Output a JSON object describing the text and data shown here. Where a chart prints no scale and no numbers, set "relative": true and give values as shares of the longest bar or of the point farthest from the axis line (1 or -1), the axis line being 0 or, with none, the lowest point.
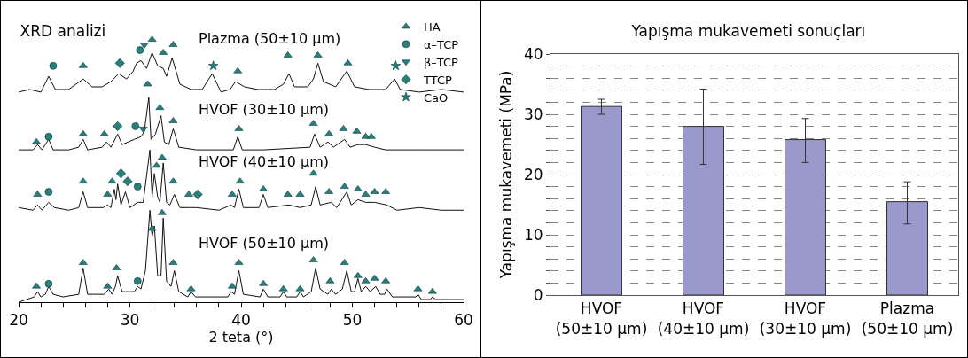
{
  "chart_data": [
    {
      "type": "line",
      "relative": true,
      "title": "XRD analizi",
      "xlabel": "2 teta (°)",
      "xlim": [
        20,
        60
      ],
      "xticks": [
        20,
        {
          "value": 22,
          "label": null
        },
        {
          "value": 24,
          "label": null
        },
        {
          "value": 26,
          "label": null
        },
        {
          "value": 28,
          "label": null
        },
        30,
        {
          "value": 32,
          "label": null
        },
        {
          "value": 34,
          "label": null
        },
        {
          "value": 36,
          "label": null
        },
        {
          "value": 38,
          "label": null
        },
        40,
        {
          "value": 42,
          "label": null
        },
        {
          "value": 44,
          "label": null
        },
        {
          "value": 46,
          "label": null
        },
        {
          "value": 48,
          "label": null
        },
        50,
        {
          "value": 52,
          "label": null
        },
        {
          "value": 54,
          "label": null
        },
        {
          "value": 56,
          "label": null
        },
        {
          "value": 58,
          "label": null
        },
        60
      ],
      "grid": false,
      "legend": "top right",
      "line_style": "solid",
      "tick_labels": "x",
      "annotations": [
        "Plazma (50±10 µm)",
        "HVOF (30±10 µm)",
        "HVOF (40±10 µm)",
        "HVOF (50±10 µm)"
      ],
      "series": [
        {
          "color": "#111111",
          "x": [
            20,
            21,
            22,
            22.7,
            23.3,
            24.5,
            25.8,
            26.6,
            27.5,
            28.3,
            29,
            29.7,
            30.3,
            30.6,
            31.0,
            31.5,
            32.0,
            32.5,
            33.0,
            33.3,
            33.8,
            34.5,
            35.5,
            36.5,
            37.4,
            38.2,
            39,
            39.5,
            40.3,
            41.5,
            43,
            43.8,
            44.3,
            44.8,
            46,
            46.5,
            46.9,
            47.4,
            48.5,
            49.5,
            50.2,
            51.5,
            53,
            53.8,
            54.3,
            56,
            58,
            60
          ],
          "values": [
            0.8,
            0.81,
            0.8,
            0.86,
            0.81,
            0.81,
            0.85,
            0.82,
            0.82,
            0.84,
            0.87,
            0.85,
            0.88,
            0.91,
            0.92,
            0.89,
            0.95,
            0.9,
            0.89,
            0.86,
            0.93,
            0.83,
            0.81,
            0.81,
            0.87,
            0.8,
            0.81,
            0.84,
            0.82,
            0.81,
            0.81,
            0.83,
            0.87,
            0.82,
            0.82,
            0.85,
            0.91,
            0.84,
            0.82,
            0.88,
            0.82,
            0.81,
            0.81,
            0.85,
            0.81,
            0.8,
            0.81,
            0.8
          ]
        },
        {
          "color": "#111111",
          "x": [
            20,
            21.3,
            21.7,
            22.1,
            22.7,
            23.1,
            24.5,
            25.4,
            25.8,
            26.2,
            27.5,
            27.9,
            28.3,
            28.9,
            29.3,
            30.4,
            31.0,
            31.3,
            31.7,
            31.9,
            32.3,
            32.8,
            33.1,
            33.5,
            33.9,
            34.4,
            36,
            39.3,
            39.7,
            40.1,
            42,
            46.2,
            46.6,
            47.1,
            47.8,
            48.3,
            49.3,
            49.8,
            50.5,
            51.2,
            52,
            53,
            56,
            60
          ],
          "values": [
            0.58,
            0.58,
            0.6,
            0.58,
            0.62,
            0.58,
            0.58,
            0.59,
            0.62,
            0.58,
            0.59,
            0.61,
            0.59,
            0.64,
            0.6,
            0.62,
            0.63,
            0.65,
            0.78,
            0.62,
            0.64,
            0.71,
            0.61,
            0.6,
            0.66,
            0.59,
            0.58,
            0.58,
            0.63,
            0.58,
            0.58,
            0.59,
            0.64,
            0.59,
            0.61,
            0.59,
            0.62,
            0.59,
            0.6,
            0.6,
            0.59,
            0.58,
            0.58,
            0.58
          ]
        },
        {
          "color": "#111111",
          "x": [
            20,
            21.3,
            21.7,
            22.1,
            22.7,
            23.2,
            24.5,
            25.4,
            25.8,
            26.2,
            27.6,
            28.0,
            28.3,
            28.6,
            28.75,
            28.9,
            29.2,
            29.6,
            30,
            30.7,
            31.2,
            31.8,
            32.0,
            32.2,
            32.5,
            32.7,
            33.0,
            33.3,
            33.6,
            34.0,
            34.5,
            35.5,
            36.0,
            38,
            39.1,
            39.4,
            39.8,
            40.2,
            41.6,
            42.0,
            42.4,
            44.3,
            45.3,
            46.3,
            46.7,
            47.1,
            48.1,
            48.6,
            49.5,
            49.9,
            50.5,
            51.2,
            52,
            53.1,
            54,
            56,
            58,
            60
          ],
          "values": [
            0.36,
            0.35,
            0.37,
            0.35,
            0.38,
            0.36,
            0.35,
            0.36,
            0.42,
            0.36,
            0.36,
            0.37,
            0.36,
            0.43,
            0.39,
            0.45,
            0.37,
            0.42,
            0.36,
            0.38,
            0.38,
            0.58,
            0.4,
            0.49,
            0.4,
            0.38,
            0.53,
            0.38,
            0.37,
            0.41,
            0.36,
            0.36,
            0.36,
            0.35,
            0.37,
            0.36,
            0.43,
            0.36,
            0.36,
            0.41,
            0.36,
            0.37,
            0.36,
            0.37,
            0.44,
            0.37,
            0.38,
            0.36,
            0.42,
            0.37,
            0.39,
            0.38,
            0.38,
            0.37,
            0.35,
            0.36,
            0.35,
            0.35
          ]
        },
        {
          "color": "#111111",
          "x": [
            20,
            21.4,
            21.7,
            22.0,
            22.4,
            22.7,
            23.1,
            24,
            25.4,
            25.8,
            26.2,
            27.7,
            28.1,
            28.4,
            28.7,
            28.9,
            29.3,
            30.4,
            30.7,
            31.0,
            31.4,
            31.8,
            32.0,
            32.2,
            32.5,
            32.8,
            33.0,
            33.3,
            33.7,
            34.0,
            34.4,
            35.2,
            35.5,
            35.9,
            38.8,
            39.1,
            39.4,
            39.8,
            40.2,
            41.7,
            42.0,
            42.4,
            43.5,
            43.8,
            44.1,
            45.0,
            45.3,
            45.6,
            46.3,
            46.7,
            47.1,
            47.8,
            48.1,
            48.5,
            49.1,
            49.5,
            49.9,
            50.2,
            50.5,
            50.8,
            51.2,
            51.6,
            52.1,
            52.5,
            52.9,
            53.1,
            53.6,
            55.7,
            55.9,
            56.2,
            57.0,
            57.2,
            57.5,
            60
          ],
          "values": [
            0,
            0.02,
            0.04,
            0.02,
            0.03,
            0.06,
            0.03,
            0.02,
            0.03,
            0.13,
            0.03,
            0.03,
            0.05,
            0.03,
            0.06,
            0.1,
            0.04,
            0.04,
            0.06,
            0.05,
            0.12,
            0.35,
            0.25,
            0.29,
            0.1,
            0.1,
            0.32,
            0.08,
            0.06,
            0.12,
            0.04,
            0.02,
            0.04,
            0.02,
            0.02,
            0.04,
            0.03,
            0.12,
            0.03,
            0.02,
            0.05,
            0.02,
            0.02,
            0.04,
            0.02,
            0.02,
            0.04,
            0.02,
            0.04,
            0.13,
            0.05,
            0.03,
            0.05,
            0.03,
            0.05,
            0.12,
            0.04,
            0.04,
            0.09,
            0.04,
            0.06,
            0.04,
            0.06,
            0.03,
            0.03,
            0.05,
            0.02,
            0.02,
            0.03,
            0.01,
            0.01,
            0.02,
            0.01,
            0.01
          ]
        },
        {
          "name": "HA",
          "type": "scatter",
          "marker": "triangle",
          "color": "#2a7f7d",
          "x": [
            25.8,
            32.0,
            33.0,
            33.9,
            39.7,
            44.2,
            46.9,
            49.6,
            21.6,
            25.8,
            27.7,
            31.6,
            32.7,
            33.9,
            39.8,
            46.5,
            47.9,
            49.2,
            50.4,
            51.2,
            51.7,
            21.7,
            25.8,
            28.0,
            28.4,
            32.4,
            32.9,
            33.9,
            35.3,
            39.2,
            39.9,
            42.0,
            44.2,
            45.3,
            46.5,
            47.9,
            49.3,
            50.5,
            51.2,
            52.0,
            53.0,
            21.6,
            25.8,
            28.0,
            28.8,
            32.0,
            32.9,
            33.9,
            35.5,
            39.2,
            39.8,
            42.0,
            43.8,
            45.3,
            46.5,
            48.0,
            49.3,
            50.5,
            51.2,
            52.0,
            53.0,
            55.9,
            57.2
          ],
          "values": [
            0.9,
            1.0,
            0.95,
            0.98,
            0.88,
            0.94,
            0.94,
            0.91,
            0.61,
            0.64,
            0.64,
            0.83,
            0.74,
            0.69,
            0.66,
            0.68,
            0.64,
            0.66,
            0.65,
            0.63,
            0.63,
            0.41,
            0.46,
            0.41,
            0.46,
            0.52,
            0.55,
            0.46,
            0.41,
            0.41,
            0.46,
            0.43,
            0.41,
            0.41,
            0.49,
            0.42,
            0.44,
            0.43,
            0.41,
            0.42,
            0.42,
            0.06,
            0.15,
            0.06,
            0.13,
            0.28,
            0.34,
            0.15,
            0.05,
            0.06,
            0.15,
            0.07,
            0.05,
            0.05,
            0.16,
            0.08,
            0.15,
            0.1,
            0.08,
            0.09,
            0.08,
            0.05,
            0.04
          ]
        },
        {
          "name": "α–TCP",
          "type": "scatter",
          "marker": "circle",
          "color": "#2a7f7d",
          "x": [
            23.1,
            30.9,
            22.7,
            30.5,
            22.7,
            30.7,
            22.7,
            30.7
          ],
          "values": [
            0.9,
            0.96,
            0.63,
            0.67,
            0.42,
            0.44,
            0.07,
            0.08
          ]
        },
        {
          "name": "β–TCP",
          "type": "scatter",
          "marker": "triangle-down",
          "color": "#2a7f7d",
          "x": [
            31.3,
            31.2
          ],
          "values": [
            0.98,
            0.66
          ]
        },
        {
          "name": "TTCP",
          "type": "scatter",
          "marker": "diamond",
          "color": "#2a7f7d",
          "x": [
            29.1,
            28.9,
            29.2,
            29.8,
            36.1
          ],
          "values": [
            0.91,
            0.67,
            0.49,
            0.46,
            0.41
          ]
        },
        {
          "name": "CaO",
          "type": "scatter",
          "marker": "star",
          "color": "#2a7f7d",
          "x": [
            37.5,
            53.9
          ],
          "values": [
            0.9,
            0.9
          ]
        }
      ]
    },
    {
      "type": "bar",
      "title": "Yapışma mukavemeti sonuçları",
      "ylabel": "Yapışma mukavemeti (MPa)",
      "categories": [
        "HVOF\n(50±10 µm)",
        "HVOF\n(40±10 µm)",
        "HVOF\n(30±10 µm)",
        "Plazma\n(50±10 µm)"
      ],
      "values": [
        31.3,
        28.0,
        25.8,
        15.5
      ],
      "color": "#9999cc",
      "errors": [
        [
          30.0,
          32.5
        ],
        [
          21.7,
          34.2
        ],
        [
          22.0,
          29.3
        ],
        [
          11.8,
          18.8
        ]
      ],
      "ylim": [
        0,
        40
      ],
      "yticks": [
        0,
        {
          "value": 2,
          "label": null
        },
        {
          "value": 4,
          "label": null
        },
        {
          "value": 6,
          "label": null
        },
        {
          "value": 8,
          "label": null
        },
        10,
        {
          "value": 12,
          "label": null
        },
        {
          "value": 14,
          "label": null
        },
        {
          "value": 16,
          "label": null
        },
        {
          "value": 18,
          "label": null
        },
        20,
        {
          "value": 22,
          "label": null
        },
        {
          "value": 24,
          "label": null
        },
        {
          "value": 26,
          "label": null
        },
        {
          "value": 28,
          "label": null
        },
        30,
        {
          "value": 32,
          "label": null
        },
        {
          "value": 34,
          "label": null
        },
        {
          "value": 36,
          "label": null
        },
        {
          "value": 38,
          "label": null
        },
        40
      ],
      "grid": "y",
      "legend": false
    }
  ]
}
